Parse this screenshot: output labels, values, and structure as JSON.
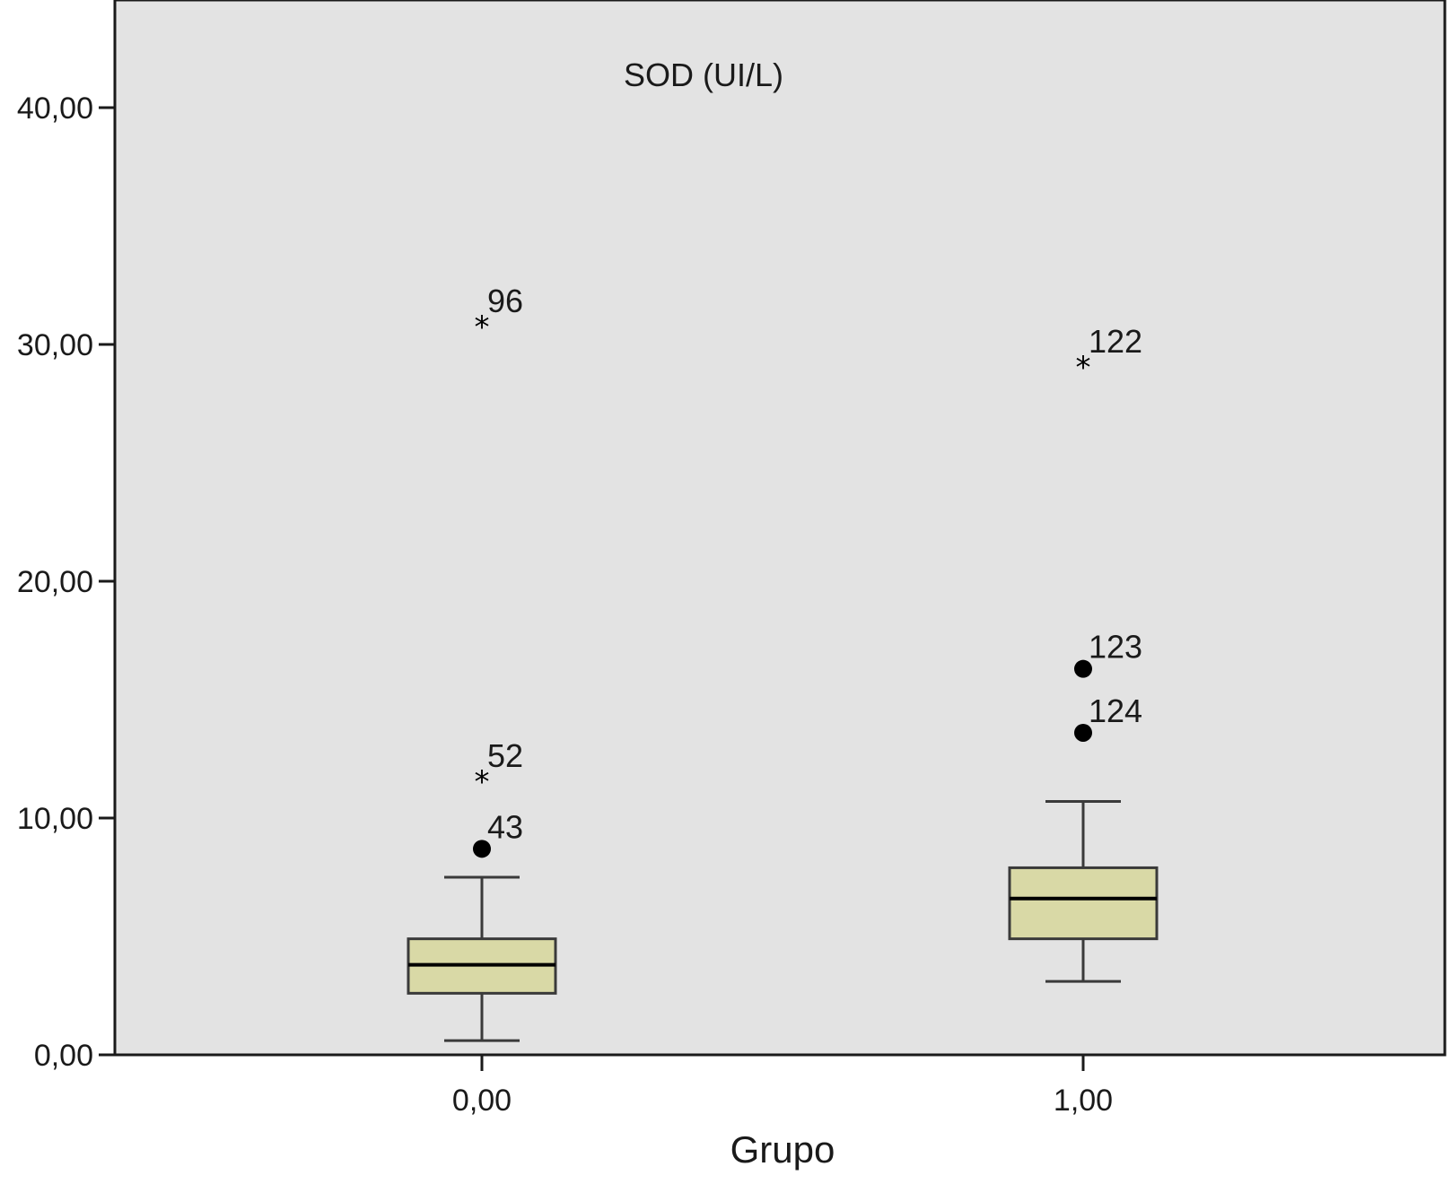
{
  "chart_data": {
    "type": "box",
    "title": "SOD (UI/L)",
    "xlabel": "Grupo",
    "ylabel": "",
    "ylim": [
      0,
      44
    ],
    "yticks": [
      {
        "value": 0,
        "label": "0,00"
      },
      {
        "value": 10,
        "label": "10,00"
      },
      {
        "value": 20,
        "label": "20,00"
      },
      {
        "value": 30,
        "label": "30,00"
      },
      {
        "value": 40,
        "label": "40,00"
      }
    ],
    "categories": [
      "0,00",
      "1,00"
    ],
    "boxes": [
      {
        "category": "0,00",
        "whisker_low": 0.6,
        "q1": 2.6,
        "median": 3.8,
        "q3": 4.9,
        "whisker_high": 7.5,
        "outliers": [
          {
            "label": "43",
            "value": 8.7,
            "kind": "circle"
          },
          {
            "label": "52",
            "value": 11.7,
            "kind": "star"
          },
          {
            "label": "96",
            "value": 30.9,
            "kind": "star"
          }
        ]
      },
      {
        "category": "1,00",
        "whisker_low": 3.1,
        "q1": 4.9,
        "median": 6.6,
        "q3": 7.9,
        "whisker_high": 10.7,
        "outliers": [
          {
            "label": "124",
            "value": 13.6,
            "kind": "circle"
          },
          {
            "label": "123",
            "value": 16.3,
            "kind": "circle"
          },
          {
            "label": "122",
            "value": 29.2,
            "kind": "star"
          }
        ]
      }
    ],
    "grid": false,
    "colors": {
      "plot_background": "#e3e3e3",
      "box_fill": "#d9d9a6",
      "box_stroke": "#3a3a3a",
      "axis": "#1a1a1a",
      "marker": "#000000"
    }
  }
}
